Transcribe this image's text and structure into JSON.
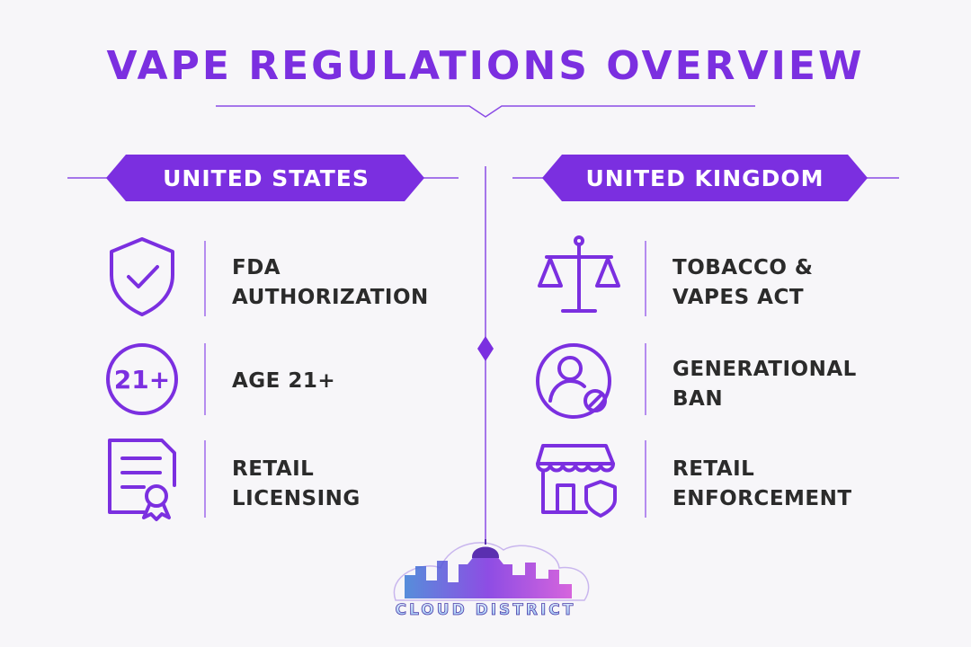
{
  "header": {
    "title": "VAPE REGULATIONS OVERVIEW"
  },
  "sections": [
    {
      "heading": "UNITED STATES",
      "items": [
        {
          "lines": [
            "FDA",
            "AUTHORIZATION"
          ]
        },
        {
          "icon_label": "21+",
          "lines": [
            "AGE 21+"
          ]
        },
        {
          "lines": [
            "RETAIL",
            "LICENSING"
          ]
        }
      ]
    },
    {
      "heading": "UNITED KINGDOM",
      "items": [
        {
          "lines": [
            "TOBACCO &",
            "VAPES ACT"
          ]
        },
        {
          "lines": [
            "GENERATIONAL",
            "BAN"
          ]
        },
        {
          "lines": [
            "RETAIL",
            "ENFORCEMENT"
          ]
        }
      ]
    }
  ],
  "logo": {
    "text": "CLOUD DISTRICT"
  }
}
